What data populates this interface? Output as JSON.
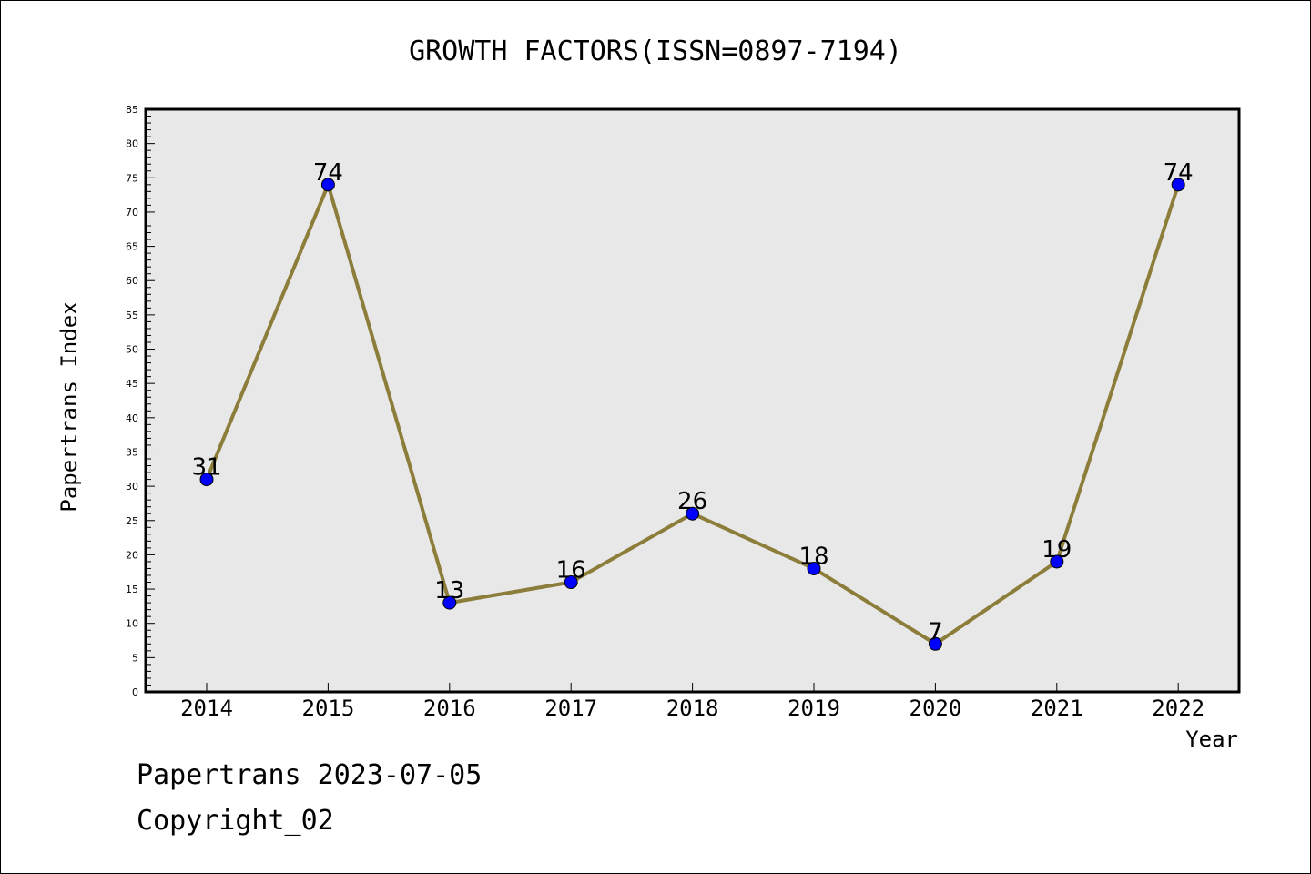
{
  "chart_data": {
    "type": "line",
    "title": "GROWTH FACTORS(ISSN=0897-7194)",
    "xlabel": "Year",
    "ylabel": "Papertrans Index",
    "categories": [
      "2014",
      "2015",
      "2016",
      "2017",
      "2018",
      "2019",
      "2020",
      "2021",
      "2022"
    ],
    "values": [
      31,
      74,
      13,
      16,
      26,
      18,
      7,
      19,
      74
    ],
    "ylim": [
      0,
      85
    ],
    "yticks": [
      0,
      5,
      10,
      15,
      20,
      25,
      30,
      35,
      40,
      45,
      50,
      55,
      60,
      65,
      70,
      75,
      80,
      85
    ],
    "grid": false,
    "legend": "none",
    "colors": {
      "line": "#8c7d3a",
      "marker": "#0000ff",
      "plot_background": "#e8e8e8"
    }
  },
  "footer": {
    "line1": "Papertrans 2023-07-05",
    "line2": "Copyright_02"
  }
}
